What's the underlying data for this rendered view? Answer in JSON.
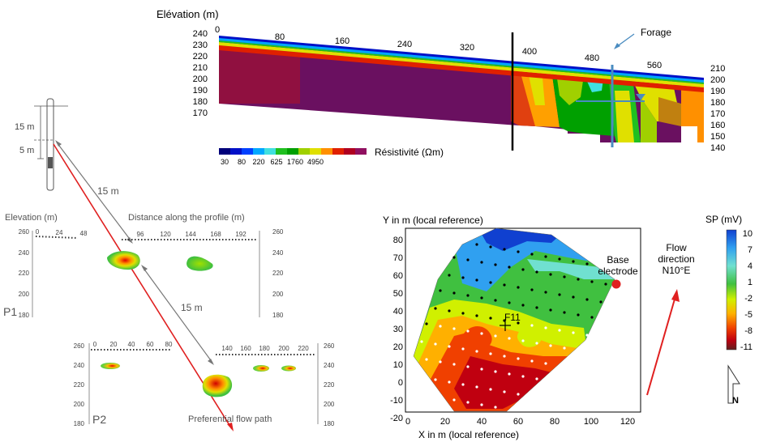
{
  "resistivity_section": {
    "ylabel": "Elévation (m)",
    "y_ticks_left": [
      "240",
      "230",
      "220",
      "210",
      "200",
      "190",
      "180",
      "170"
    ],
    "y_ticks_right": [
      "210",
      "200",
      "190",
      "180",
      "170",
      "160",
      "150",
      "140"
    ],
    "x_ticks": [
      "0",
      "80",
      "160",
      "240",
      "320",
      "400",
      "480",
      "560"
    ],
    "annotation": "Forage",
    "colorbar_label": "Résistivité (Ωm)",
    "colorbar_ticks": [
      "30",
      "80",
      "220",
      "625",
      "1760",
      "4950"
    ],
    "colors": [
      "#00007a",
      "#0010c8",
      "#0040ff",
      "#00a8ff",
      "#40e0e0",
      "#20c020",
      "#00a000",
      "#a0d000",
      "#e0e000",
      "#ff9000",
      "#e02000",
      "#b00020",
      "#901060",
      "#6a1060"
    ]
  },
  "borehole": {
    "label_15m": "15 m",
    "label_5m": "5 m"
  },
  "distance_labels": {
    "upper": "15 m",
    "lower": "15 m"
  },
  "profile_p1": {
    "ylabel": "Elevation (m)",
    "xlabel": "Distance along the profile (m)",
    "x_ticks": [
      "0",
      "24",
      "48",
      "96",
      "120",
      "144",
      "168",
      "192"
    ],
    "y_ticks": [
      "260",
      "240",
      "220",
      "200",
      "180"
    ],
    "name": "P1"
  },
  "profile_p2": {
    "x_ticks": [
      "0",
      "20",
      "40",
      "60",
      "80",
      "140",
      "160",
      "180",
      "200",
      "220"
    ],
    "y_ticks": [
      "260",
      "240",
      "220",
      "200",
      "180"
    ],
    "name": "P2",
    "annotation": "Preferential flow path"
  },
  "sp_map": {
    "ylabel": "Y in m (local reference)",
    "xlabel": "X in m (local reference)",
    "x_ticks": [
      "0",
      "20",
      "40",
      "60",
      "80",
      "100",
      "120"
    ],
    "y_ticks": [
      "80",
      "70",
      "60",
      "50",
      "40",
      "30",
      "20",
      "10",
      "0",
      "-10",
      "-20"
    ],
    "point_label": "F11",
    "base_label_1": "Base",
    "base_label_2": "electrode",
    "flow_label_1": "Flow",
    "flow_label_2": "direction",
    "flow_label_3": "N10°E",
    "north_label": "N",
    "colorbar_title": "SP (mV)",
    "colorbar_ticks": [
      "10",
      "7",
      "4",
      "1",
      "-2",
      "-5",
      "-8",
      "-11"
    ]
  }
}
